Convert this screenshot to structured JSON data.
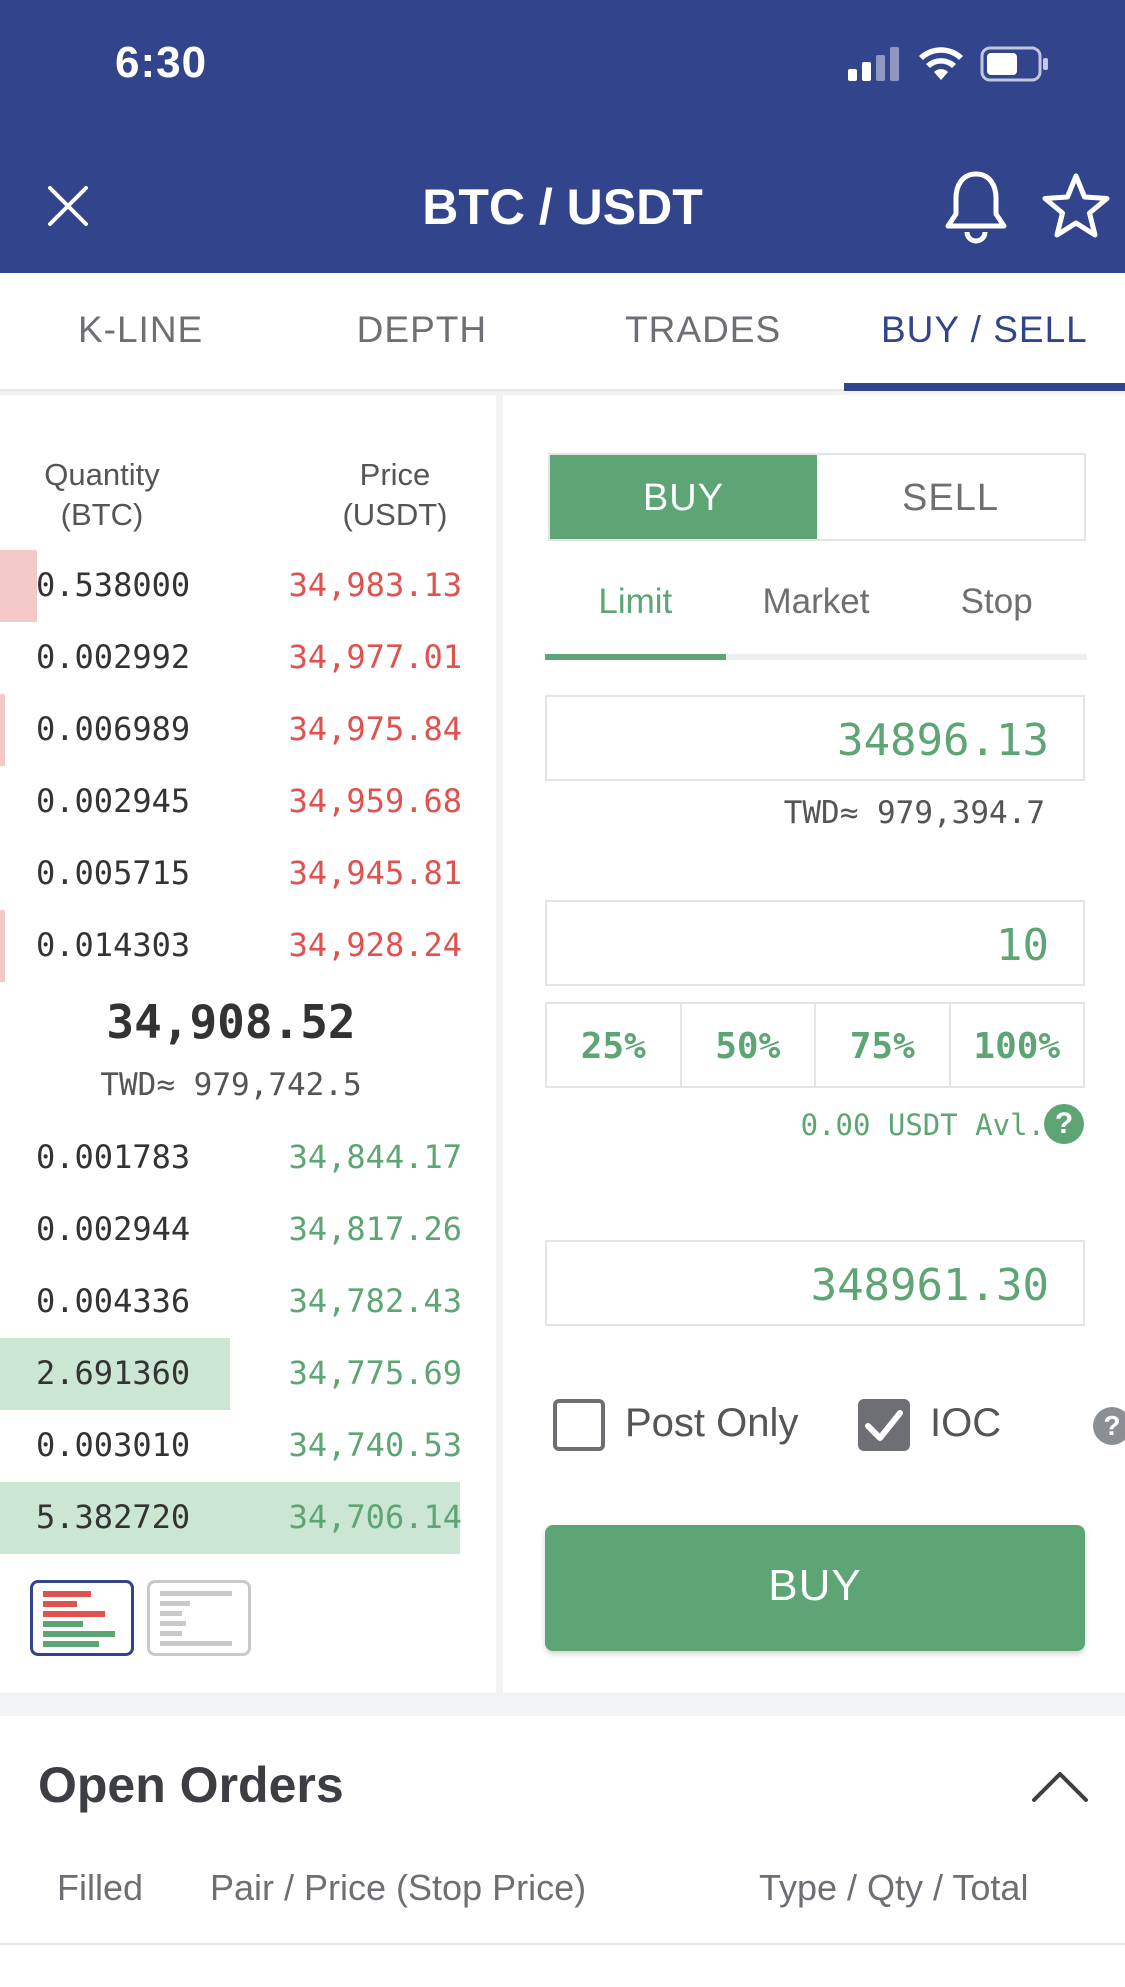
{
  "status_bar": {
    "time": "6:30"
  },
  "header": {
    "title": "BTC / USDT"
  },
  "tabs": [
    {
      "label": "K-LINE",
      "active": false
    },
    {
      "label": "DEPTH",
      "active": false
    },
    {
      "label": "TRADES",
      "active": false
    },
    {
      "label": "BUY / SELL",
      "active": true
    }
  ],
  "order_book": {
    "qty_header_line1": "Quantity",
    "qty_header_line2": "(BTC)",
    "price_header_line1": "Price",
    "price_header_line2": "(USDT)",
    "asks": [
      {
        "qty": "0.538000",
        "price": "34,983.13",
        "depth": 0.08
      },
      {
        "qty": "0.002992",
        "price": "34,977.01",
        "depth": 0.0
      },
      {
        "qty": "0.006989",
        "price": "34,975.84",
        "depth": 0.005
      },
      {
        "qty": "0.002945",
        "price": "34,959.68",
        "depth": 0.0
      },
      {
        "qty": "0.005715",
        "price": "34,945.81",
        "depth": 0.0
      },
      {
        "qty": "0.014303",
        "price": "34,928.24",
        "depth": 0.005
      }
    ],
    "last_price": "34,908.52",
    "last_price_twd": "TWD≈ 979,742.5",
    "bids": [
      {
        "qty": "0.001783",
        "price": "34,844.17",
        "depth": 0.0
      },
      {
        "qty": "0.002944",
        "price": "34,817.26",
        "depth": 0.0
      },
      {
        "qty": "0.004336",
        "price": "34,782.43",
        "depth": 0.0
      },
      {
        "qty": "2.691360",
        "price": "34,775.69",
        "depth": 0.5
      },
      {
        "qty": "0.003010",
        "price": "34,740.53",
        "depth": 0.0
      },
      {
        "qty": "5.382720",
        "price": "34,706.14",
        "depth": 1.0
      }
    ]
  },
  "trade_form": {
    "buy_label": "BUY",
    "sell_label": "SELL",
    "order_types": [
      {
        "label": "Limit",
        "active": true
      },
      {
        "label": "Market",
        "active": false
      },
      {
        "label": "Stop",
        "active": false
      }
    ],
    "price_value": "34896.13",
    "price_twd": "TWD≈ 979,394.7",
    "amount_value": "10",
    "percent_options": [
      "25%",
      "50%",
      "75%",
      "100%"
    ],
    "available": "0.00 USDT Avl.",
    "total_value": "348961.30",
    "post_only_label": "Post Only",
    "post_only_checked": false,
    "ioc_label": "IOC",
    "ioc_checked": true,
    "submit_label": "BUY"
  },
  "open_orders": {
    "title": "Open Orders",
    "columns": [
      "Filled",
      "Pair / Price (Stop Price)",
      "Type / Qty / Total"
    ]
  },
  "colors": {
    "brand": "#32448c",
    "buy_green": "#5da574",
    "sell_red": "#e0524f"
  }
}
